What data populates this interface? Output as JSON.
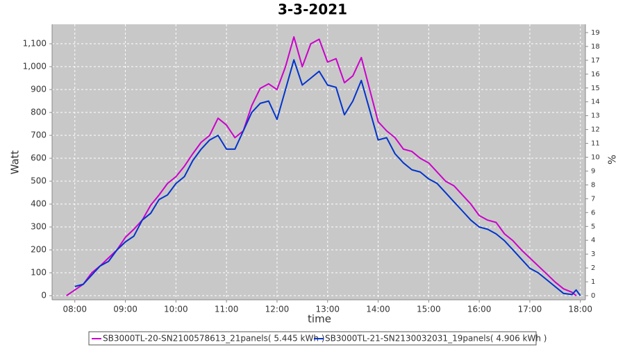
{
  "chart_data": {
    "type": "line",
    "title": "3-3-2021",
    "x_label": "time",
    "y_label": "Watt",
    "y2_label": "%",
    "x": [
      470,
      480,
      490,
      500,
      510,
      520,
      530,
      540,
      550,
      560,
      570,
      580,
      590,
      600,
      610,
      620,
      630,
      640,
      650,
      660,
      670,
      680,
      690,
      700,
      710,
      720,
      730,
      740,
      750,
      760,
      770,
      780,
      790,
      800,
      810,
      820,
      830,
      840,
      850,
      860,
      870,
      880,
      890,
      900,
      910,
      920,
      930,
      940,
      950,
      960,
      970,
      980,
      990,
      1000,
      1010,
      1020,
      1030,
      1040,
      1050,
      1060,
      1070,
      1075,
      1080
    ],
    "series": [
      {
        "name": "SB3000TL-20-SN2100578613_21panels( 5.445 kWh )",
        "color": "#cc00cc",
        "values": [
          0,
          25,
          50,
          100,
          130,
          165,
          200,
          255,
          290,
          330,
          395,
          440,
          490,
          520,
          565,
          620,
          670,
          700,
          775,
          745,
          690,
          720,
          830,
          905,
          925,
          900,
          1000,
          1130,
          1000,
          1100,
          1120,
          1020,
          1035,
          930,
          960,
          1040,
          900,
          760,
          720,
          690,
          640,
          630,
          600,
          580,
          540,
          500,
          480,
          440,
          400,
          350,
          330,
          320,
          270,
          240,
          200,
          165,
          130,
          95,
          60,
          30,
          15,
          0,
          null
        ]
      },
      {
        "name": "SB3000TL-21-SN2130032031_19panels( 4.906 kWh )",
        "color": "#0033cc",
        "values": [
          null,
          40,
          50,
          90,
          130,
          150,
          200,
          235,
          260,
          330,
          360,
          420,
          440,
          490,
          520,
          590,
          640,
          680,
          700,
          640,
          640,
          720,
          800,
          840,
          850,
          770,
          900,
          1030,
          920,
          950,
          980,
          920,
          910,
          790,
          850,
          940,
          810,
          680,
          690,
          620,
          580,
          550,
          540,
          510,
          490,
          450,
          410,
          370,
          330,
          300,
          290,
          270,
          240,
          200,
          160,
          120,
          100,
          70,
          40,
          10,
          5,
          25,
          0
        ]
      }
    ],
    "xlim": [
      453,
      1086
    ],
    "xticks": [
      {
        "value": 480,
        "label": "08:00"
      },
      {
        "value": 540,
        "label": "09:00"
      },
      {
        "value": 600,
        "label": "10:00"
      },
      {
        "value": 660,
        "label": "11:00"
      },
      {
        "value": 720,
        "label": "12:00"
      },
      {
        "value": 780,
        "label": "13:00"
      },
      {
        "value": 840,
        "label": "14:00"
      },
      {
        "value": 900,
        "label": "15:00"
      },
      {
        "value": 960,
        "label": "16:00"
      },
      {
        "value": 1020,
        "label": "17:00"
      },
      {
        "value": 1080,
        "label": "18:00"
      }
    ],
    "ylim": [
      -18,
      1185
    ],
    "yticks": [
      0,
      100,
      200,
      300,
      400,
      500,
      600,
      700,
      800,
      900,
      {
        "value": 1000,
        "label": "1,000"
      },
      {
        "value": 1100,
        "label": "1,100"
      }
    ],
    "y2lim": [
      -0.3,
      19.6
    ],
    "y2ticks": [
      0,
      1,
      2,
      3,
      4,
      5,
      6,
      7,
      8,
      9,
      10,
      11,
      12,
      13,
      14,
      15,
      16,
      17,
      18,
      19
    ],
    "grid": true,
    "legend": "bottom"
  }
}
